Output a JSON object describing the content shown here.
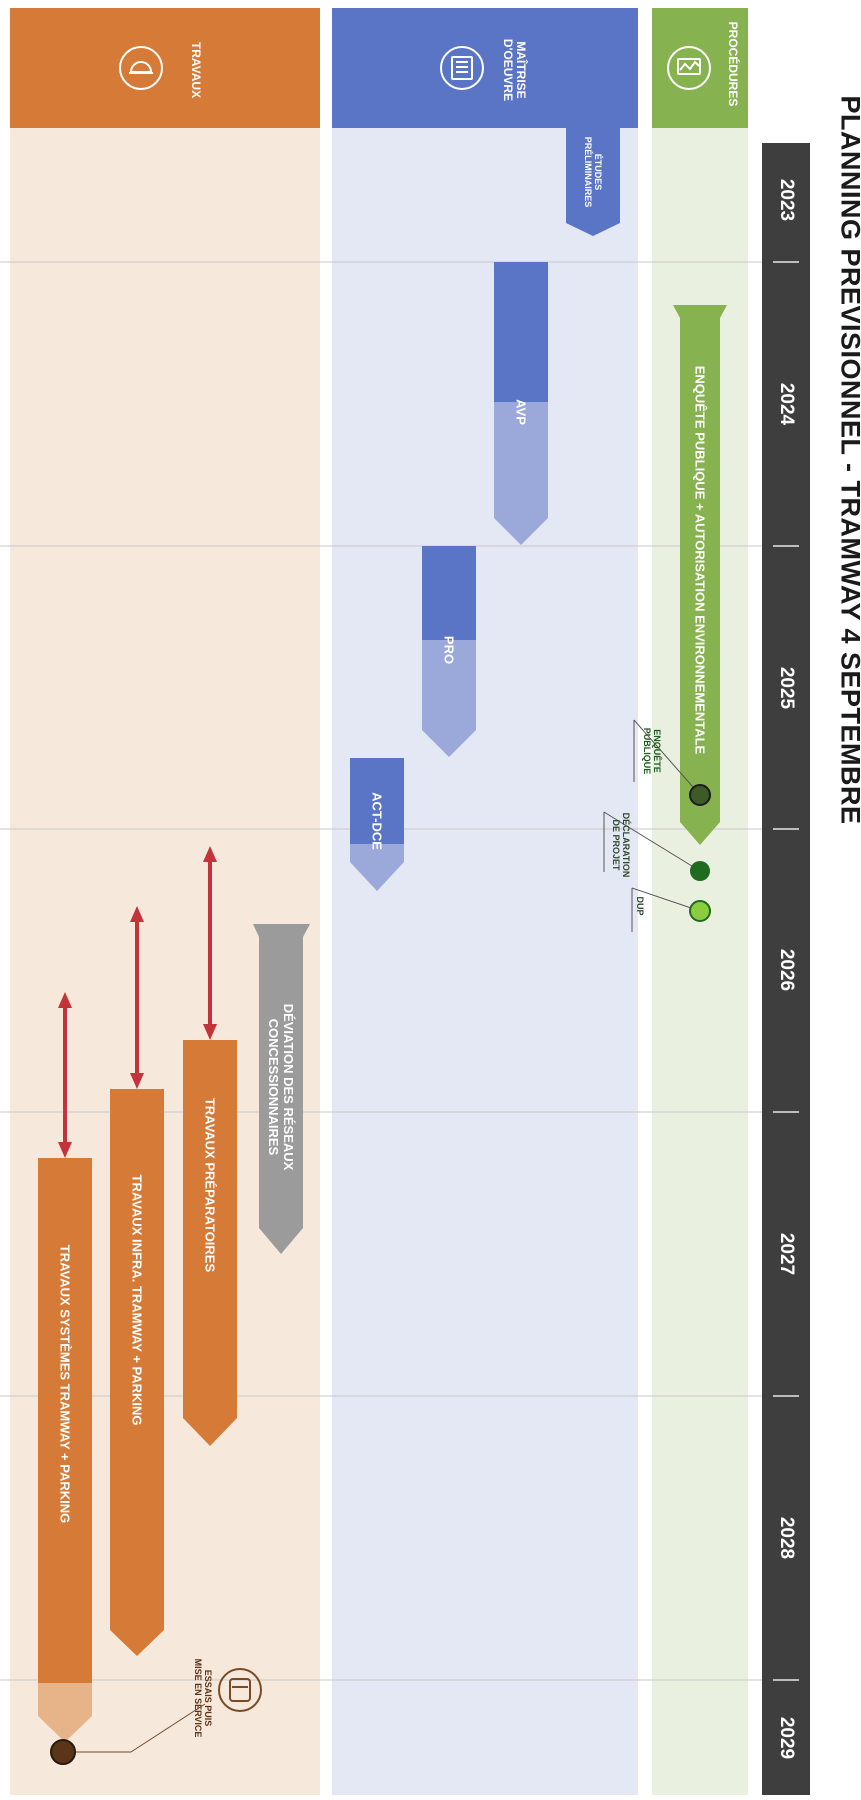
{
  "title": "PLANNING PRÉVISIONNEL - TRAMWAY 4 SEPTEMBRE",
  "years": [
    "2023",
    "2024",
    "2025",
    "2026",
    "2027",
    "2028",
    "2029"
  ],
  "lanes": {
    "procedures": {
      "label": "PROCÉDURES",
      "color": "#86b34f"
    },
    "moe": {
      "label": "MAÎTRISE\nD'OEUVRE",
      "color": "#5a74c6"
    },
    "travaux": {
      "label": "TRAVAUX",
      "color": "#d67a37"
    }
  },
  "bars": {
    "enquete": "ENQUÊTE PUBLIQUE + AUTORISATION ENVIRONNEMENTALE",
    "etudes": "ÉTUDES\nPRÉLIMINAIRES",
    "avp": "AVP",
    "pro": "PRO",
    "actdce": "ACT-DCE",
    "deviation": "DÉVIATION DES RÉSEAUX\nCONCESSIONNAIRES",
    "preparatoires": "TRAVAUX PRÉPARATOIRES",
    "infra": "TRAVAUX INFRA. TRAMWAY + PARKING",
    "systemes": "TRAVAUX SYSTÈMES TRAMWAY + PARKING"
  },
  "milestones": {
    "enquete_publique": "ENQUÊTE\nPUBLIQUE",
    "declaration": "DÉCLARATION\nDE PROJET",
    "dup": "DUP",
    "mise_en_service": "ESSAIS PUIS\nMISE EN SERVICE"
  },
  "colors": {
    "timeline_bg": "#3e3e3e",
    "procedures_bg": "#eaf0df",
    "moe_bg": "#e4e8f4",
    "travaux_bg": "#f7e8dc",
    "green": "#86b34f",
    "blue": "#5a74c6",
    "blue_light": "#9aa9d9",
    "orange": "#d67a37",
    "orange_light": "#e7b48a",
    "grey": "#9b9b9b",
    "red": "#c4323a",
    "dark_green": "#1f6b1f",
    "light_green": "#8ccc3f",
    "brown": "#5a3517"
  }
}
